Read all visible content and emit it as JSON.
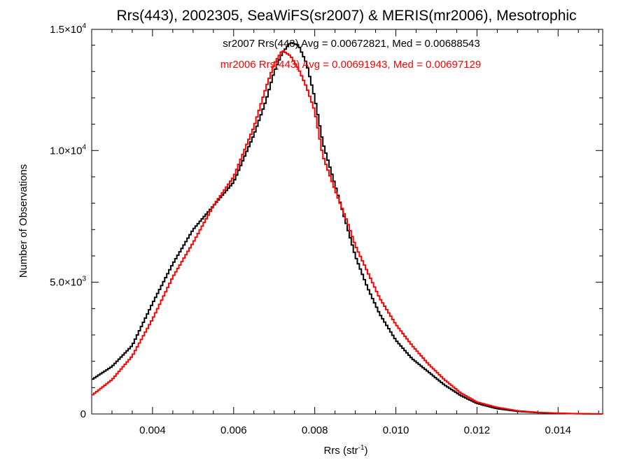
{
  "chart_data": {
    "type": "line",
    "title": "Rrs(443), 2002305, SeaWiFS(sr2007) & MERIS(mr2006), Mesotrophic",
    "xlabel": {
      "base": "Rrs (str",
      "sup": "-1",
      "close": ")"
    },
    "ylabel": "Number of Observations",
    "xlim": [
      0.0025,
      0.0151
    ],
    "ylim": [
      0,
      14600
    ],
    "grid": false,
    "x_ticks": [
      {
        "value": 0.004,
        "label": "0.004"
      },
      {
        "value": 0.006,
        "label": "0.006"
      },
      {
        "value": 0.008,
        "label": "0.008"
      },
      {
        "value": 0.01,
        "label": "0.010"
      },
      {
        "value": 0.012,
        "label": "0.012"
      },
      {
        "value": 0.014,
        "label": "0.014"
      }
    ],
    "y_ticks": [
      {
        "value": 0,
        "mantissa": "0",
        "exp": ""
      },
      {
        "value": 5000,
        "mantissa": "5.0×10",
        "exp": "3"
      },
      {
        "value": 10000,
        "mantissa": "1.0×10",
        "exp": "4"
      },
      {
        "value": 14600,
        "mantissa": "1.5×10",
        "exp": "4"
      }
    ],
    "annotations": [
      {
        "text": "sr2007 Rrs(443) Avg = 0.00672821, Med = 0.00688543",
        "color": "#000000"
      },
      {
        "text": "mr2006 Rrs(443) Avg = 0.00691943, Med = 0.00697129",
        "color": "#ff0000"
      }
    ],
    "series": [
      {
        "color": "#000000",
        "x": [
          0.0025,
          0.003,
          0.0035,
          0.004,
          0.0045,
          0.005,
          0.0055,
          0.006,
          0.0065,
          0.0068,
          0.007,
          0.0072,
          0.0074,
          0.0076,
          0.0078,
          0.008,
          0.0082,
          0.0085,
          0.0088,
          0.009,
          0.0093,
          0.0096,
          0.01,
          0.0104,
          0.0108,
          0.0112,
          0.0116,
          0.012,
          0.0125,
          0.013,
          0.0135,
          0.014,
          0.0145,
          0.0151
        ],
        "y": [
          1300,
          1800,
          2600,
          4200,
          5700,
          7000,
          7900,
          8800,
          10600,
          11900,
          13000,
          13700,
          14100,
          14000,
          13300,
          12000,
          10300,
          8700,
          7100,
          6000,
          4800,
          3800,
          2800,
          2100,
          1600,
          1100,
          700,
          400,
          200,
          100,
          50,
          20,
          10,
          0
        ]
      },
      {
        "color": "#ff0000",
        "x": [
          0.0025,
          0.003,
          0.0035,
          0.004,
          0.0045,
          0.005,
          0.0055,
          0.006,
          0.0065,
          0.0068,
          0.007,
          0.0072,
          0.0074,
          0.0076,
          0.0078,
          0.008,
          0.0082,
          0.0085,
          0.0088,
          0.009,
          0.0093,
          0.0096,
          0.01,
          0.0104,
          0.0108,
          0.0112,
          0.0116,
          0.012,
          0.0125,
          0.013,
          0.0135,
          0.014,
          0.0145,
          0.0151
        ],
        "y": [
          700,
          1300,
          2200,
          3600,
          5200,
          6500,
          7900,
          9000,
          10900,
          12400,
          13300,
          13800,
          13600,
          13100,
          12400,
          11500,
          9800,
          8500,
          7300,
          6400,
          5400,
          4400,
          3400,
          2600,
          1900,
          1300,
          800,
          450,
          250,
          120,
          60,
          30,
          10,
          0
        ]
      }
    ]
  }
}
